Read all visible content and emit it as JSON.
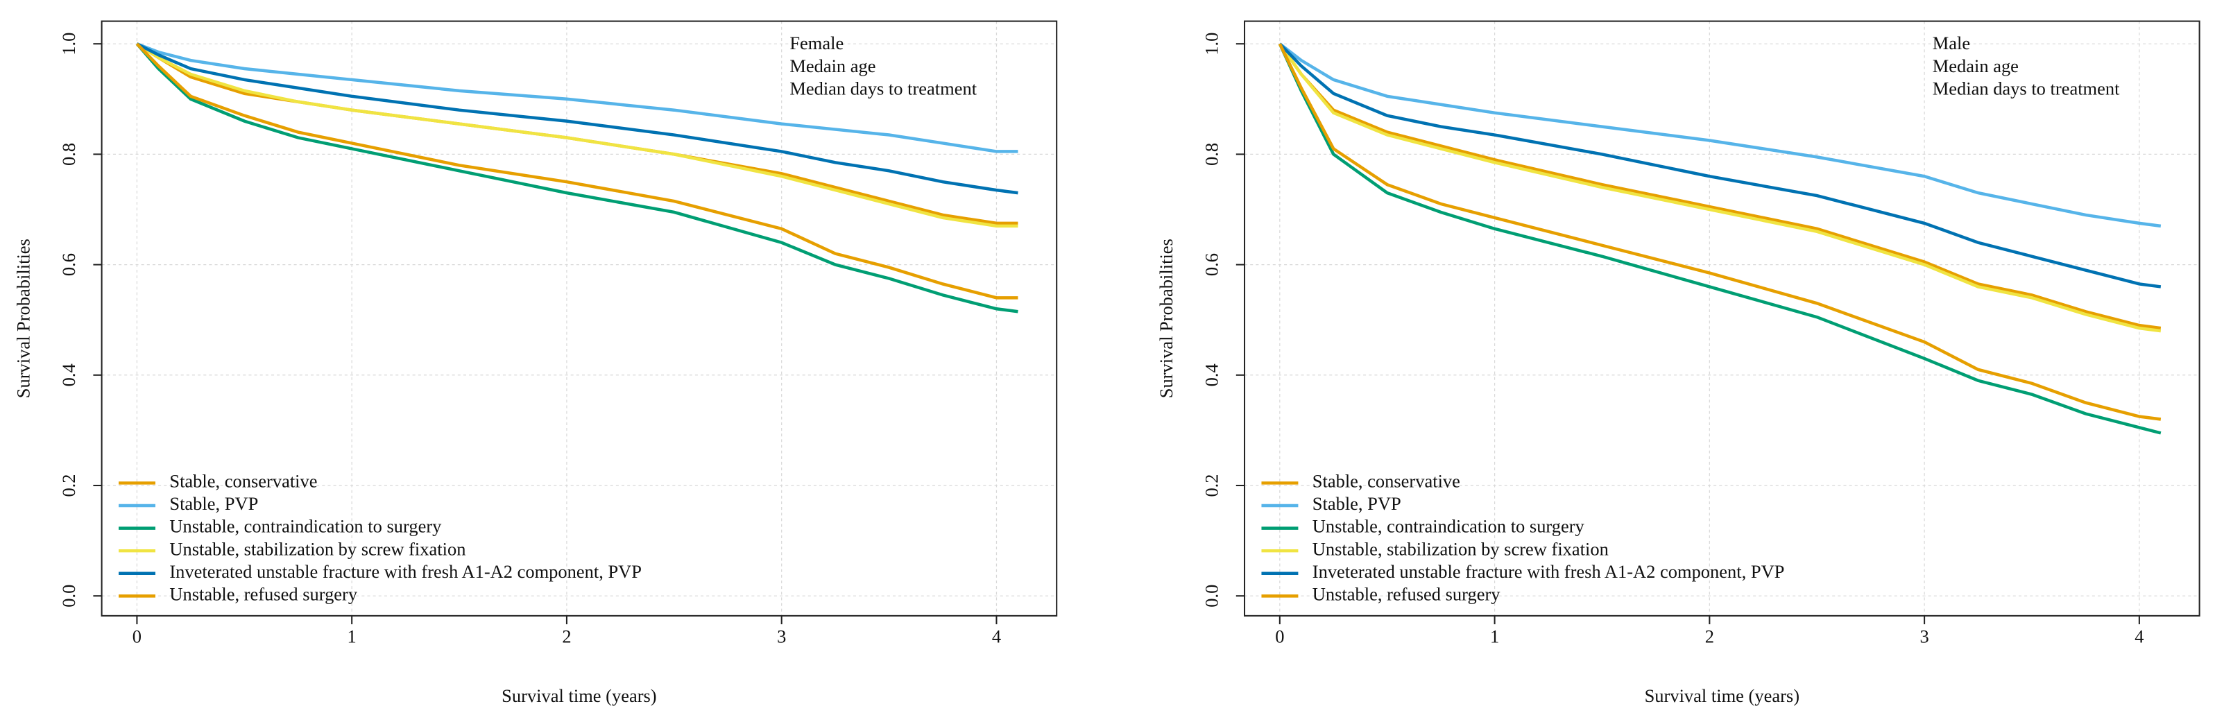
{
  "chart_data": [
    {
      "type": "line",
      "x_label": "Survival time (years)",
      "y_label": "Survival Probabilities",
      "annotation": [
        "Female",
        "Medain age",
        "Median days to treatment"
      ],
      "xlim": [
        -0.164,
        4.28
      ],
      "ylim": [
        -0.036,
        1.041
      ],
      "xticks": [
        0,
        1,
        2,
        3,
        4
      ],
      "yticks": [
        {
          "value": 0,
          "label": "0.0"
        },
        0.2,
        0.4,
        0.6,
        0.8,
        {
          "value": 1,
          "label": "1.0"
        }
      ],
      "grid": true,
      "legend_position": "bottomleft",
      "x": [
        0,
        0.1,
        0.25,
        0.5,
        0.75,
        1,
        1.5,
        2,
        2.5,
        3,
        3.25,
        3.5,
        3.75,
        4,
        4.1
      ],
      "series": [
        {
          "name": "Stable, conservative",
          "color": "#E69F00",
          "values": [
            1,
            0.975,
            0.94,
            0.91,
            0.895,
            0.88,
            0.855,
            0.83,
            0.8,
            0.765,
            0.74,
            0.715,
            0.69,
            0.675,
            0.675
          ]
        },
        {
          "name": "Stable, PVP",
          "color": "#56B4E9",
          "values": [
            1,
            0.985,
            0.97,
            0.955,
            0.945,
            0.935,
            0.915,
            0.9,
            0.88,
            0.855,
            0.845,
            0.835,
            0.82,
            0.805,
            0.805
          ]
        },
        {
          "name": "Unstable, contraindication to surgery",
          "color": "#009E73",
          "values": [
            1,
            0.955,
            0.9,
            0.86,
            0.83,
            0.81,
            0.77,
            0.73,
            0.695,
            0.64,
            0.6,
            0.575,
            0.545,
            0.52,
            0.515
          ]
        },
        {
          "name": "Unstable, stabilization by screw fixation",
          "color": "#F0E442",
          "values": [
            1,
            0.975,
            0.945,
            0.915,
            0.895,
            0.88,
            0.855,
            0.83,
            0.8,
            0.76,
            0.735,
            0.71,
            0.685,
            0.67,
            0.67
          ]
        },
        {
          "name": "Inveterated unstable fracture with fresh A1-A2 component, PVP",
          "color": "#0072B2",
          "values": [
            1,
            0.98,
            0.955,
            0.935,
            0.92,
            0.905,
            0.88,
            0.86,
            0.835,
            0.805,
            0.785,
            0.77,
            0.75,
            0.735,
            0.73
          ]
        },
        {
          "name": "Unstable, refused surgery",
          "color": "#E69F00",
          "values": [
            1,
            0.96,
            0.905,
            0.87,
            0.84,
            0.82,
            0.78,
            0.75,
            0.715,
            0.665,
            0.62,
            0.595,
            0.565,
            0.54,
            0.54
          ]
        }
      ]
    },
    {
      "type": "line",
      "x_label": "Survival time (years)",
      "y_label": "Survival Probabilities",
      "annotation": [
        "Male",
        "Medain age",
        "Median days to treatment"
      ],
      "xlim": [
        -0.164,
        4.28
      ],
      "ylim": [
        -0.036,
        1.041
      ],
      "xticks": [
        0,
        1,
        2,
        3,
        4
      ],
      "yticks": [
        {
          "value": 0,
          "label": "0.0"
        },
        0.2,
        0.4,
        0.6,
        0.8,
        {
          "value": 1,
          "label": "1.0"
        }
      ],
      "grid": true,
      "legend_position": "bottomleft",
      "x": [
        0,
        0.1,
        0.25,
        0.5,
        0.75,
        1,
        1.5,
        2,
        2.5,
        3,
        3.25,
        3.5,
        3.75,
        4,
        4.1
      ],
      "series": [
        {
          "name": "Stable, conservative",
          "color": "#E69F00",
          "values": [
            1,
            0.945,
            0.88,
            0.84,
            0.815,
            0.79,
            0.745,
            0.705,
            0.665,
            0.605,
            0.565,
            0.545,
            0.515,
            0.49,
            0.485
          ]
        },
        {
          "name": "Stable, PVP",
          "color": "#56B4E9",
          "values": [
            1,
            0.97,
            0.935,
            0.905,
            0.89,
            0.875,
            0.85,
            0.825,
            0.795,
            0.76,
            0.73,
            0.71,
            0.69,
            0.675,
            0.67
          ]
        },
        {
          "name": "Unstable, contraindication to surgery",
          "color": "#009E73",
          "values": [
            1,
            0.915,
            0.8,
            0.73,
            0.695,
            0.665,
            0.615,
            0.56,
            0.505,
            0.43,
            0.39,
            0.365,
            0.33,
            0.305,
            0.295
          ]
        },
        {
          "name": "Unstable, stabilization by screw fixation",
          "color": "#F0E442",
          "values": [
            1,
            0.945,
            0.875,
            0.835,
            0.81,
            0.785,
            0.74,
            0.7,
            0.66,
            0.6,
            0.56,
            0.54,
            0.51,
            0.485,
            0.48
          ]
        },
        {
          "name": "Inveterated unstable fracture with fresh A1-A2 component, PVP",
          "color": "#0072B2",
          "values": [
            1,
            0.96,
            0.91,
            0.87,
            0.85,
            0.835,
            0.8,
            0.76,
            0.725,
            0.675,
            0.64,
            0.615,
            0.59,
            0.565,
            0.56
          ]
        },
        {
          "name": "Unstable, refused surgery",
          "color": "#E69F00",
          "values": [
            1,
            0.92,
            0.81,
            0.745,
            0.71,
            0.685,
            0.635,
            0.585,
            0.53,
            0.46,
            0.41,
            0.385,
            0.35,
            0.325,
            0.32
          ]
        }
      ]
    }
  ]
}
